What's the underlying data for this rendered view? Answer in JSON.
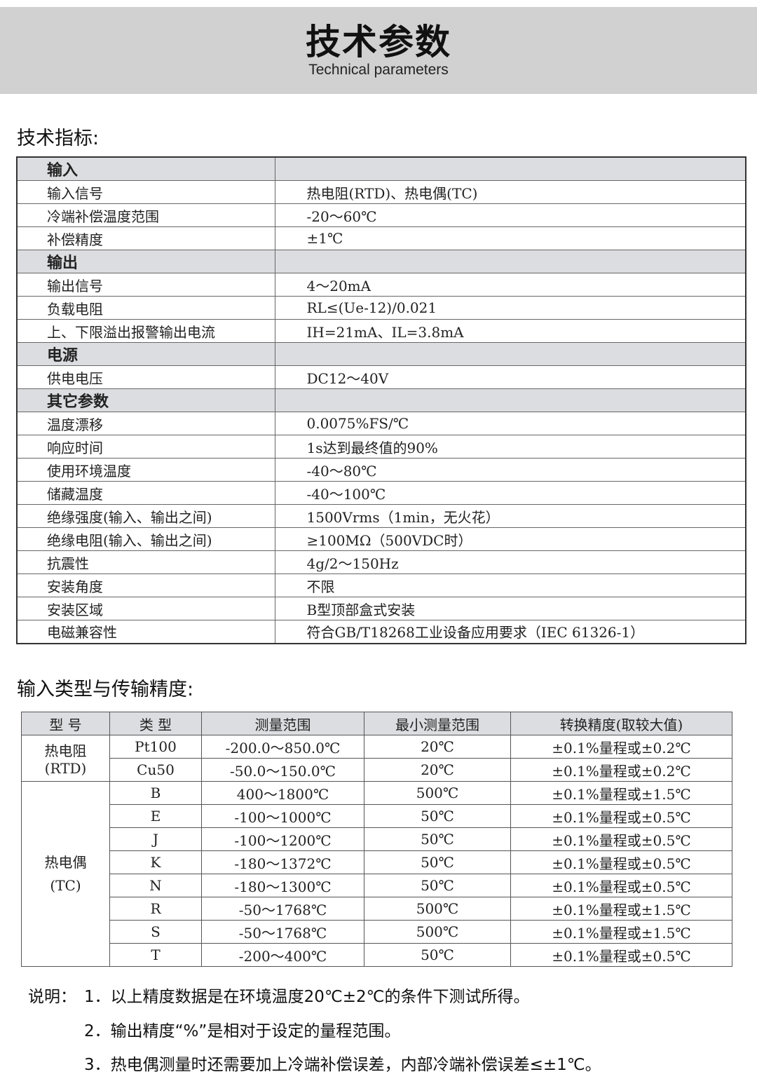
{
  "header": {
    "title": "技术参数",
    "subtitle": "Technical parameters"
  },
  "spec": {
    "heading": "技术指标:",
    "rows": [
      {
        "group": "输入"
      },
      {
        "k": "输入信号",
        "v": "热电阻(RTD)、热电偶(TC)"
      },
      {
        "k": "冷端补偿温度范围",
        "v": "-20～60℃"
      },
      {
        "k": "补偿精度",
        "v": "±1℃"
      },
      {
        "group": "输出"
      },
      {
        "k": "输出信号",
        "v": "4～20mA"
      },
      {
        "k": "负载电阻",
        "v": "RL≤(Ue-12)/0.021"
      },
      {
        "k": "上、下限溢出报警输出电流",
        "v": "IH=21mA、IL=3.8mA"
      },
      {
        "group": "电源"
      },
      {
        "k": "供电电压",
        "v": "DC12～40V"
      },
      {
        "group": "其它参数"
      },
      {
        "k": "温度漂移",
        "v": "0.0075%FS/℃"
      },
      {
        "k": "响应时间",
        "v": "1s达到最终值的90%"
      },
      {
        "k": "使用环境温度",
        "v": "-40～80℃"
      },
      {
        "k": "储藏温度",
        "v": "-40～100℃"
      },
      {
        "k": "绝缘强度(输入、输出之间)",
        "v": "1500Vrms（1min，无火花）"
      },
      {
        "k": "绝缘电阻(输入、输出之间)",
        "v": "≥100MΩ（500VDC时）"
      },
      {
        "k": "抗震性",
        "v": "4g/2～150Hz"
      },
      {
        "k": "安装角度",
        "v": "不限"
      },
      {
        "k": "安装区域",
        "v": "B型顶部盒式安装"
      },
      {
        "k": "电磁兼容性",
        "v": "符合GB/T18268工业设备应用要求（IEC 61326-1）"
      }
    ]
  },
  "accuracy": {
    "heading": "输入类型与传输精度:",
    "columns": [
      "型 号",
      "类 型",
      "测量范围",
      "最小测量范围",
      "转换精度(取较大值)"
    ],
    "groups": [
      {
        "name": "热电阻",
        "code": "(RTD)",
        "rows": [
          [
            "Pt100",
            "-200.0～850.0℃",
            "20℃",
            "±0.1%量程或±0.2℃"
          ],
          [
            "Cu50",
            "-50.0～150.0℃",
            "20℃",
            "±0.1%量程或±0.2℃"
          ]
        ]
      },
      {
        "name": "热电偶",
        "code": "(TC)",
        "rows": [
          [
            "B",
            "400～1800℃",
            "500℃",
            "±0.1%量程或±1.5℃"
          ],
          [
            "E",
            "-100～1000℃",
            "50℃",
            "±0.1%量程或±0.5℃"
          ],
          [
            "J",
            "-100～1200℃",
            "50℃",
            "±0.1%量程或±0.5℃"
          ],
          [
            "K",
            "-180～1372℃",
            "50℃",
            "±0.1%量程或±0.5℃"
          ],
          [
            "N",
            "-180～1300℃",
            "50℃",
            "±0.1%量程或±0.5℃"
          ],
          [
            "R",
            "-50～1768℃",
            "500℃",
            "±0.1%量程或±1.5℃"
          ],
          [
            "S",
            "-50～1768℃",
            "500℃",
            "±0.1%量程或±1.5℃"
          ],
          [
            "T",
            "-200～400℃",
            "50℃",
            "±0.1%量程或±0.5℃"
          ]
        ]
      }
    ]
  },
  "notes": {
    "label": "说明：",
    "items": [
      "1．以上精度数据是在环境温度20℃±2℃的条件下测试所得。",
      "2．输出精度“%”是相对于设定的量程范围。",
      "3．热电偶测量时还需要加上冷端补偿误差，内部冷端补偿误差≤±1℃。"
    ]
  }
}
